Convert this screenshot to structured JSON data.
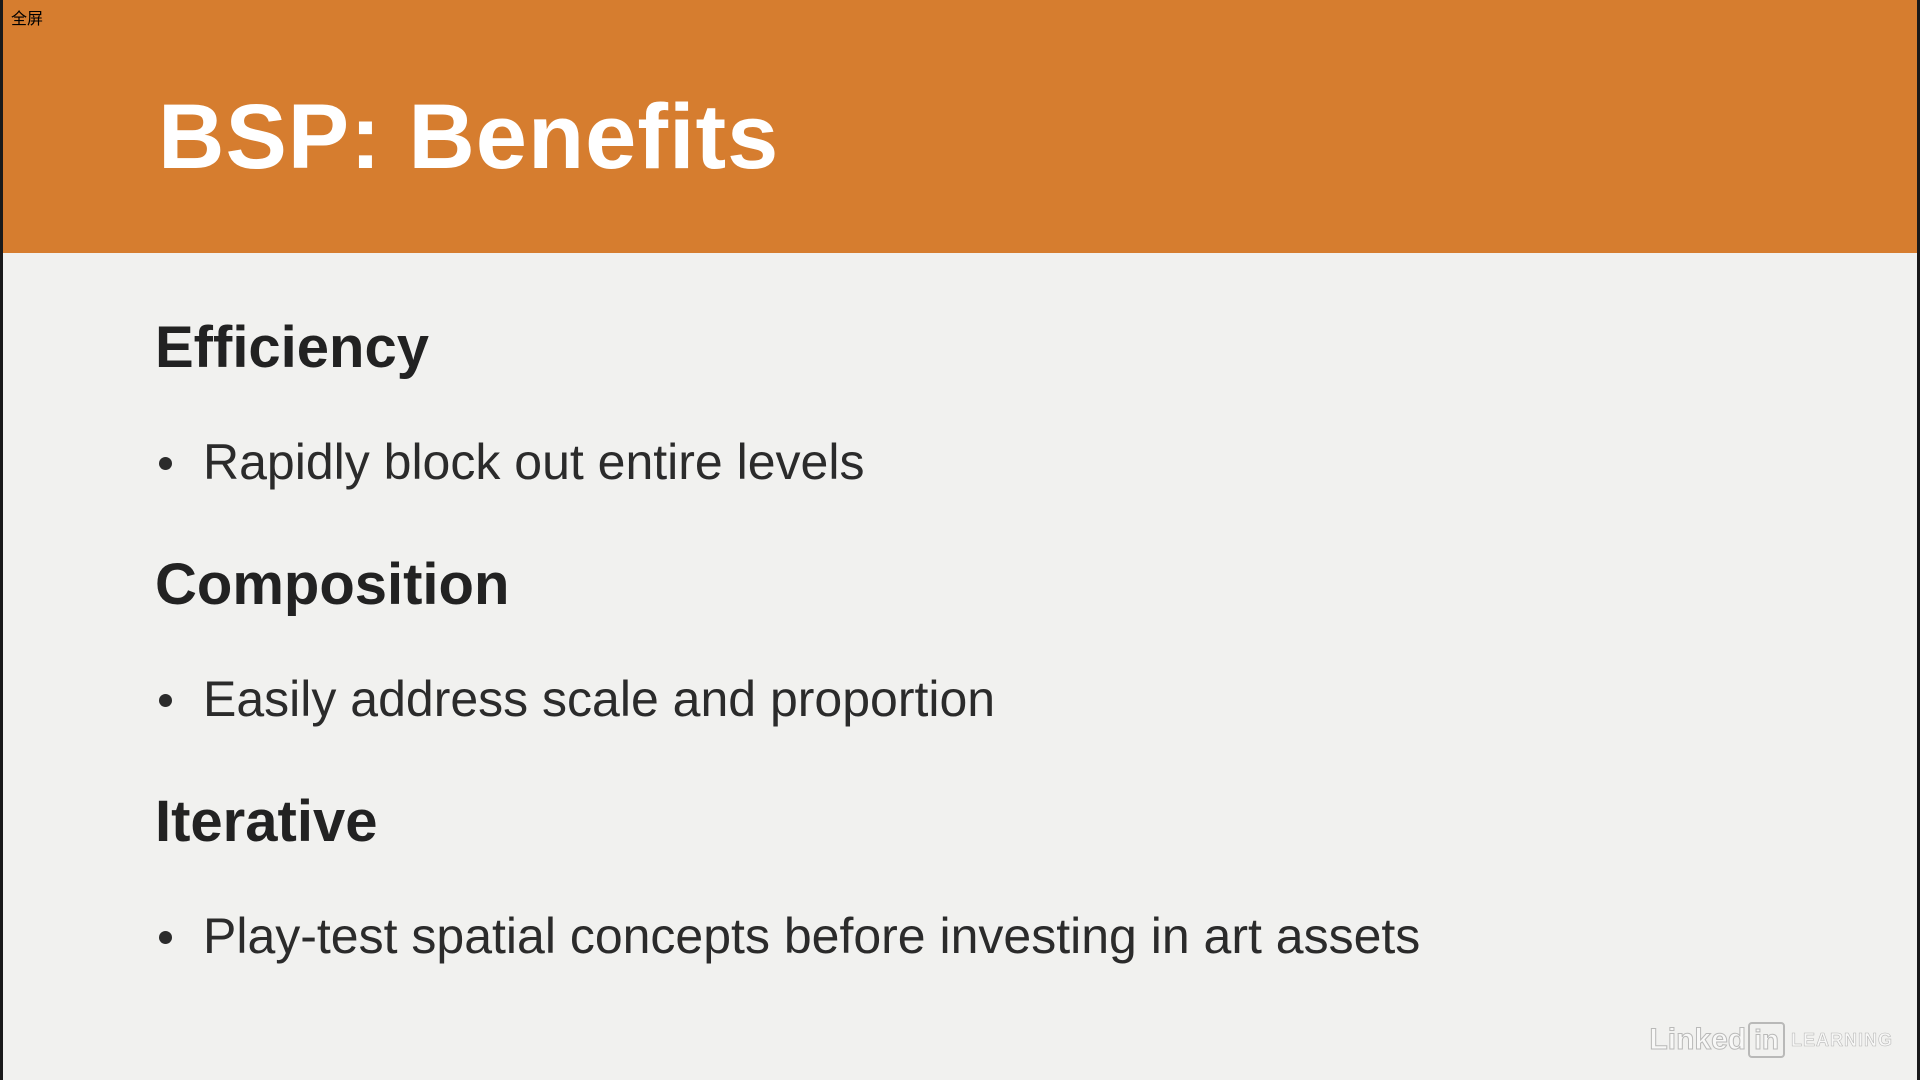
{
  "overlay": {
    "fullscreen_label": "全屏"
  },
  "slide": {
    "title": "BSP: Benefits",
    "sections": [
      {
        "heading": "Efficiency",
        "bullet": "Rapidly block out entire levels"
      },
      {
        "heading": "Composition",
        "bullet": "Easily address scale and proportion"
      },
      {
        "heading": "Iterative",
        "bullet": "Play-test spatial concepts before investing in art assets"
      }
    ]
  },
  "watermark": {
    "brand_word": "Linked",
    "brand_box": "in",
    "product": "LEARNING"
  },
  "colors": {
    "header": "#d67d2f",
    "background": "#f1f1ef",
    "title_text": "#ffffff",
    "body_text": "#222222"
  }
}
